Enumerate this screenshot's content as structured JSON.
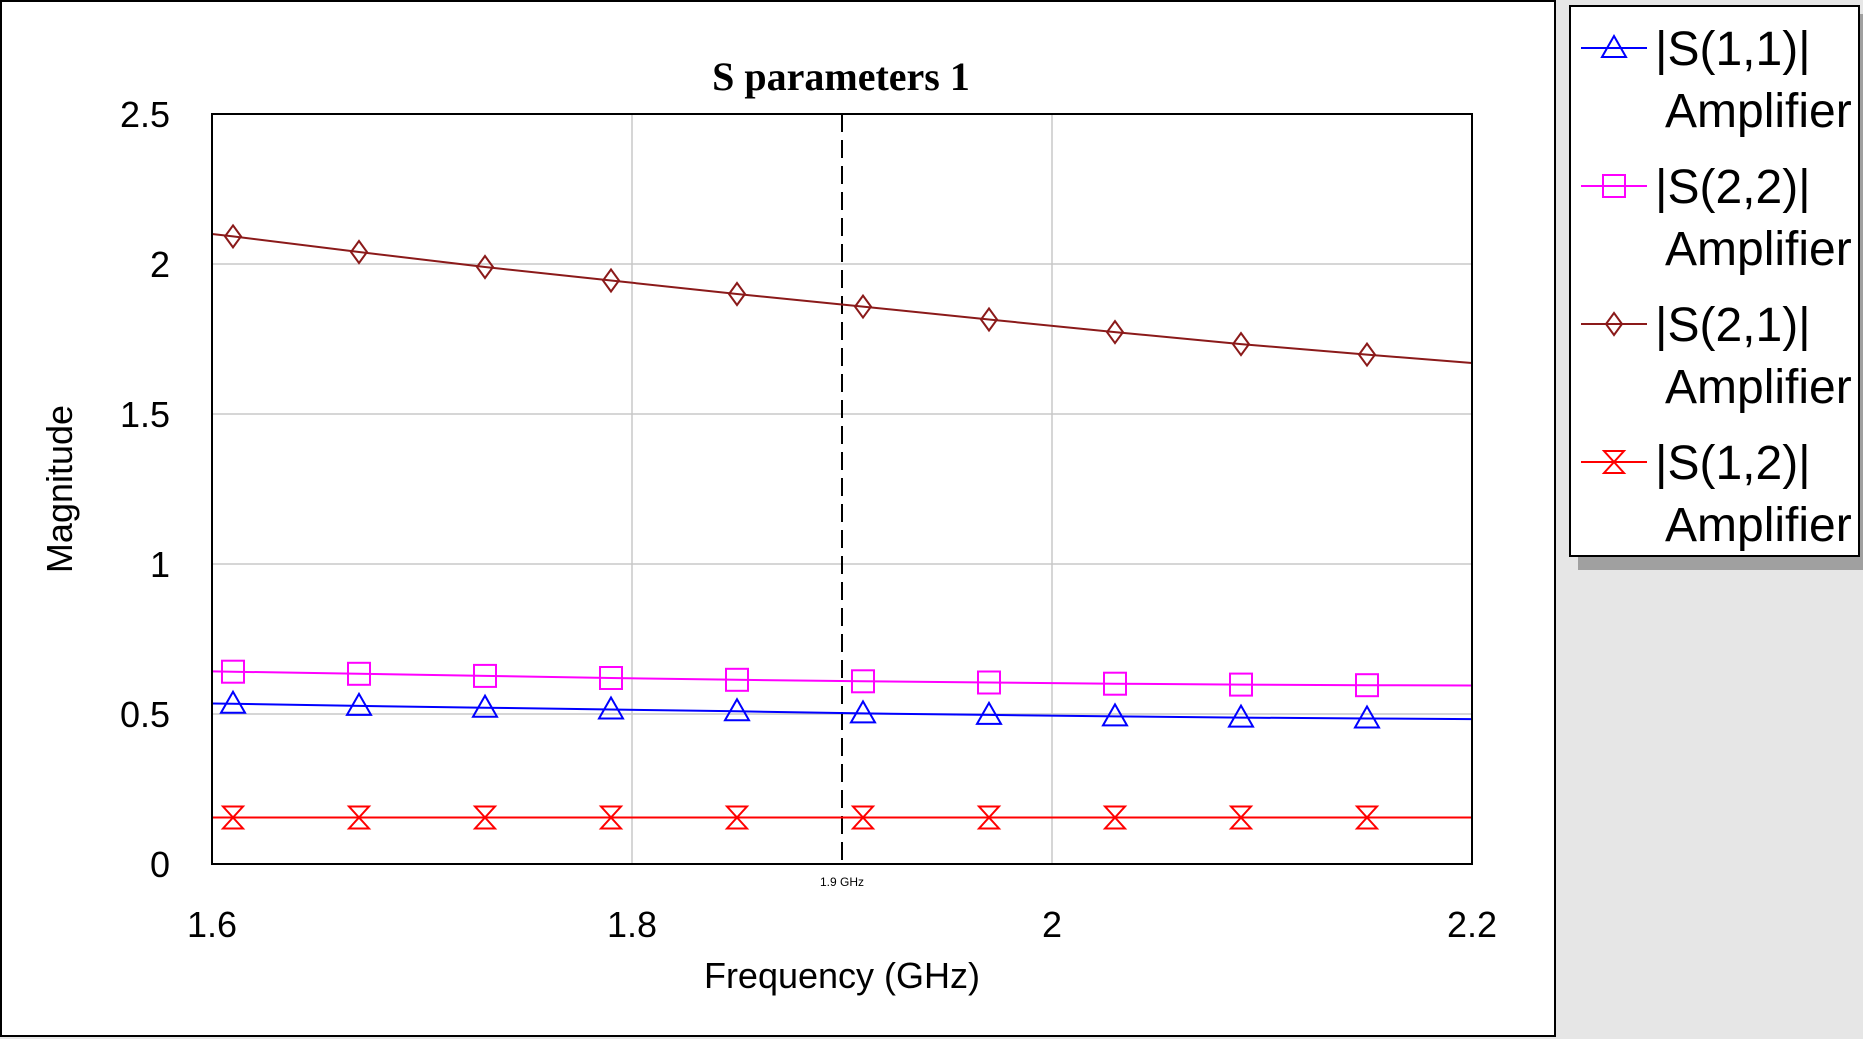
{
  "chart_data": {
    "type": "line",
    "title": "S parameters 1",
    "xlabel": "Frequency (GHz)",
    "ylabel": "Magnitude",
    "xlim": [
      1.6,
      2.2
    ],
    "ylim": [
      0,
      2.5
    ],
    "x_ticks": [
      1.6,
      1.8,
      2.0,
      2.2
    ],
    "x_tick_labels": [
      "1.6",
      "1.8",
      "2",
      "2.2"
    ],
    "y_ticks": [
      0,
      0.5,
      1,
      1.5,
      2,
      2.5
    ],
    "y_tick_labels": [
      "0",
      "0.5",
      "1",
      "1.5",
      "2",
      "2.5"
    ],
    "grid": true,
    "legend_position": "right, outside plot",
    "marker_label": "1.9 GHz",
    "marker_x": 1.9,
    "x": [
      1.6,
      1.61,
      1.67,
      1.73,
      1.79,
      1.85,
      1.91,
      1.97,
      2.03,
      2.09,
      2.15,
      2.2
    ],
    "series": [
      {
        "name": "|S(1,1)| Amplifier",
        "name_lines": [
          "|S(1,1)|",
          "Amplifier"
        ],
        "color": "#0000ff",
        "marker": "triangle",
        "values": [
          0.535,
          0.534,
          0.527,
          0.521,
          0.515,
          0.509,
          0.502,
          0.497,
          0.492,
          0.488,
          0.485,
          0.483
        ]
      },
      {
        "name": "|S(2,2)| Amplifier",
        "name_lines": [
          "|S(2,2)|",
          "Amplifier"
        ],
        "color": "#ff00ff",
        "marker": "square",
        "values": [
          0.642,
          0.641,
          0.634,
          0.627,
          0.62,
          0.614,
          0.609,
          0.605,
          0.601,
          0.598,
          0.596,
          0.595
        ]
      },
      {
        "name": "|S(2,1)| Amplifier",
        "name_lines": [
          "|S(2,1)|",
          "Amplifier"
        ],
        "color": "#8b1a1a",
        "marker": "diamond",
        "values": [
          2.1,
          2.092,
          2.04,
          1.99,
          1.945,
          1.9,
          1.858,
          1.815,
          1.773,
          1.733,
          1.698,
          1.67
        ]
      },
      {
        "name": "|S(1,2)| Amplifier",
        "name_lines": [
          "|S(1,2)|",
          "Amplifier"
        ],
        "color": "#ff0000",
        "marker": "hourglass",
        "values": [
          0.155,
          0.155,
          0.155,
          0.155,
          0.155,
          0.155,
          0.155,
          0.155,
          0.155,
          0.155,
          0.155,
          0.155
        ]
      }
    ]
  },
  "colors": {
    "grid": "#c8c8c8",
    "axes": "#000000",
    "marker_line": "#000000"
  }
}
